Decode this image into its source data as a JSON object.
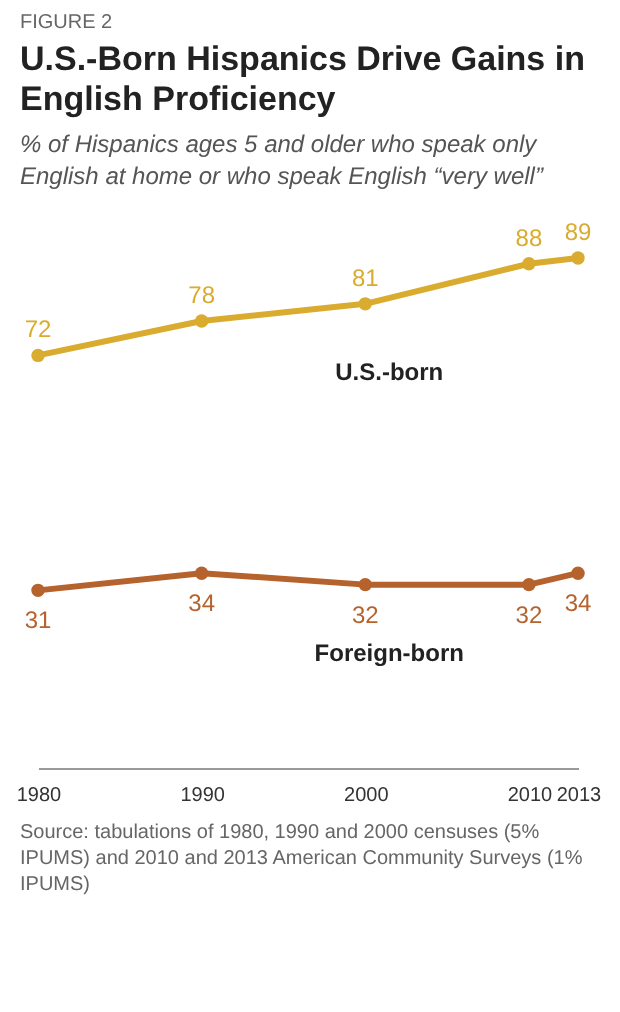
{
  "chart_data": {
    "type": "line",
    "title": "U.S.-Born Hispanics Drive Gains in English Proficiency",
    "subtitle": "% of Hispanics ages 5 and older who speak only English at home or who speak English “very well”",
    "annotations": [
      "FIGURE 2",
      "Source: tabulations of 1980, 1990 and 2000 censuses (5% IPUMS) and 2010 and 2013 American Community Surveys (1% IPUMS)"
    ],
    "x": [
      1980,
      1990,
      2000,
      2010,
      2013
    ],
    "series": [
      {
        "name": "U.S.-born",
        "color": "#d9ab2e",
        "values": [
          72,
          78,
          81,
          88,
          89
        ]
      },
      {
        "name": "Foreign-born",
        "color": "#b5622c",
        "values": [
          31,
          34,
          32,
          32,
          34
        ]
      }
    ],
    "xlim": [
      1980,
      2013
    ],
    "xticks": [
      1980,
      1990,
      2000,
      2010,
      2013
    ],
    "tick_labels": "x",
    "grid": false,
    "legend": false,
    "marker": "circle",
    "line_style": "solid",
    "data_labels": true
  }
}
